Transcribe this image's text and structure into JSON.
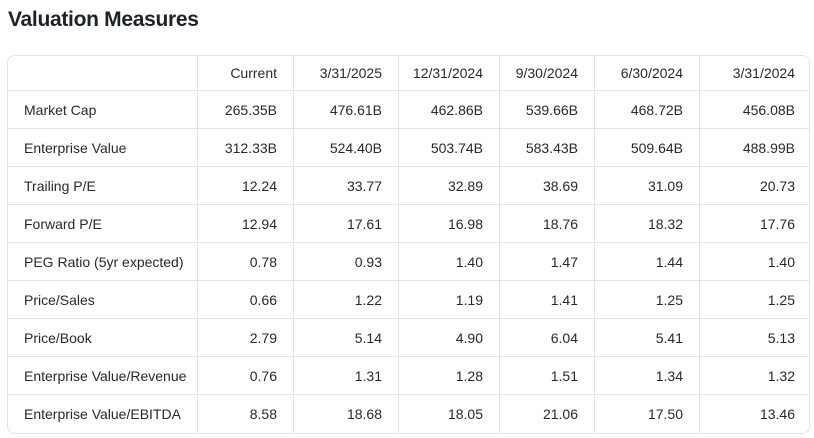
{
  "page": {
    "title": "Valuation Measures"
  },
  "colors": {
    "text": "#232a31",
    "title": "#1d2228",
    "border": "#e0e4e9",
    "background": "#ffffff"
  },
  "table": {
    "header": [
      "",
      "Current",
      "3/31/2025",
      "12/31/2024",
      "9/30/2024",
      "6/30/2024",
      "3/31/2024"
    ],
    "rows": [
      {
        "label": "Market Cap",
        "values": [
          "265.35B",
          "476.61B",
          "462.86B",
          "539.66B",
          "468.72B",
          "456.08B"
        ]
      },
      {
        "label": "Enterprise Value",
        "values": [
          "312.33B",
          "524.40B",
          "503.74B",
          "583.43B",
          "509.64B",
          "488.99B"
        ]
      },
      {
        "label": "Trailing P/E",
        "values": [
          "12.24",
          "33.77",
          "32.89",
          "38.69",
          "31.09",
          "20.73"
        ]
      },
      {
        "label": "Forward P/E",
        "values": [
          "12.94",
          "17.61",
          "16.98",
          "18.76",
          "18.32",
          "17.76"
        ]
      },
      {
        "label": "PEG Ratio (5yr expected)",
        "values": [
          "0.78",
          "0.93",
          "1.40",
          "1.47",
          "1.44",
          "1.40"
        ]
      },
      {
        "label": "Price/Sales",
        "values": [
          "0.66",
          "1.22",
          "1.19",
          "1.41",
          "1.25",
          "1.25"
        ]
      },
      {
        "label": "Price/Book",
        "values": [
          "2.79",
          "5.14",
          "4.90",
          "6.04",
          "5.41",
          "5.13"
        ]
      },
      {
        "label": "Enterprise Value/Revenue",
        "values": [
          "0.76",
          "1.31",
          "1.28",
          "1.51",
          "1.34",
          "1.32"
        ]
      },
      {
        "label": "Enterprise Value/EBITDA",
        "values": [
          "8.58",
          "18.68",
          "18.05",
          "21.06",
          "17.50",
          "13.46"
        ]
      }
    ]
  }
}
